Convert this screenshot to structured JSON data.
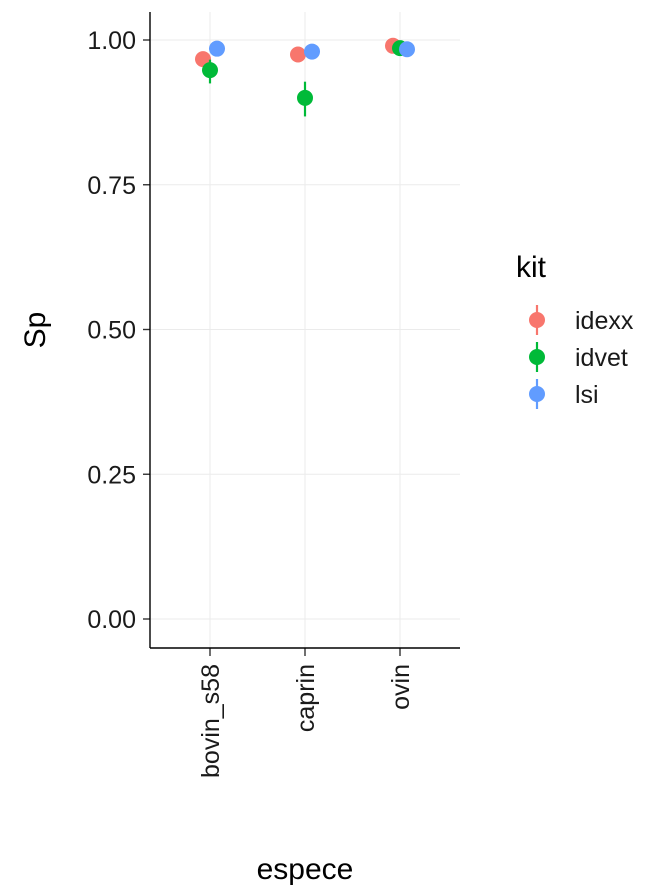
{
  "chart_data": {
    "type": "scatter",
    "xlabel": "espece",
    "ylabel": "Sp",
    "categories": [
      "bovin_s58",
      "caprin",
      "ovin"
    ],
    "ylim": [
      -0.05,
      1.05
    ],
    "yticks": [
      "0.00",
      "0.25",
      "0.50",
      "0.75",
      "1.00"
    ],
    "grid": true,
    "legend": {
      "title": "kit",
      "placement": "right"
    },
    "series": [
      {
        "name": "idexx",
        "color": "#F8766D",
        "values": [
          0.967,
          0.975,
          0.99
        ],
        "lower": [
          0.955,
          0.962,
          0.983
        ],
        "upper": [
          0.978,
          0.986,
          0.996
        ]
      },
      {
        "name": "idvet",
        "color": "#00BA38",
        "values": [
          0.948,
          0.9,
          0.986
        ],
        "lower": [
          0.925,
          0.868,
          0.978
        ],
        "upper": [
          0.966,
          0.928,
          0.993
        ]
      },
      {
        "name": "lsi",
        "color": "#619CFF",
        "values": [
          0.985,
          0.98,
          0.984
        ],
        "lower": [
          0.976,
          0.97,
          0.976
        ],
        "upper": [
          0.992,
          0.988,
          0.991
        ]
      }
    ]
  }
}
